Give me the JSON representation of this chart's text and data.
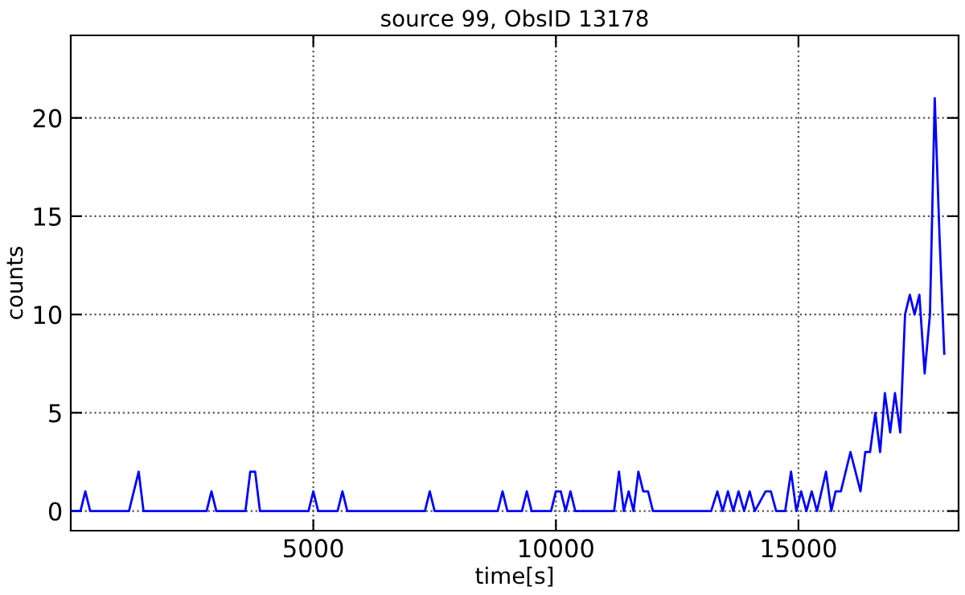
{
  "chart_data": {
    "type": "line",
    "title": "source 99, ObsID 13178",
    "xlabel": "time[s]",
    "ylabel": "counts",
    "x": [
      0,
      200,
      300,
      400,
      1200,
      1400,
      1500,
      2800,
      2900,
      3000,
      3600,
      3700,
      3800,
      3900,
      4900,
      5000,
      5100,
      5500,
      5600,
      5700,
      7300,
      7400,
      7500,
      8800,
      8900,
      9000,
      9300,
      9400,
      9500,
      9900,
      10000,
      10100,
      10200,
      10300,
      10400,
      11200,
      11300,
      11400,
      11500,
      11600,
      11700,
      11800,
      11900,
      12000,
      13200,
      13328,
      13437,
      13546,
      13655,
      13765,
      13880,
      13994,
      14100,
      14322,
      14431,
      14540,
      14726,
      14847,
      14956,
      15055,
      15164,
      15273,
      15382,
      15568,
      15677,
      15765,
      15874,
      16072,
      16279,
      16377,
      16475,
      16584,
      16683,
      16781,
      16890,
      16989,
      17098,
      17197,
      17295,
      17393,
      17492,
      17601,
      17710,
      17809,
      17907,
      18005
    ],
    "series": [
      {
        "color": "#0000ff",
        "values": [
          0,
          0,
          1,
          0,
          0,
          2,
          0,
          0,
          1,
          0,
          0,
          2,
          2,
          0,
          0,
          1,
          0,
          0,
          1,
          0,
          0,
          1,
          0,
          0,
          1,
          0,
          0,
          1,
          0,
          0,
          1,
          1,
          0,
          1,
          0,
          0,
          2,
          0,
          1,
          0,
          2,
          1,
          1,
          0,
          0,
          1,
          0,
          1,
          0,
          1,
          0,
          1,
          0,
          1,
          1,
          0,
          0,
          2,
          0,
          1,
          0,
          1,
          0,
          2,
          0,
          1,
          1,
          3,
          1,
          3,
          3,
          5,
          3,
          6,
          4,
          6,
          4,
          10,
          11,
          10,
          11,
          7,
          10,
          21,
          14,
          8
        ]
      }
    ],
    "xlim": [
      0,
      18300
    ],
    "ylim": [
      -1,
      24.2
    ],
    "xticks": [
      5000,
      10000,
      15000
    ],
    "yticks": [
      0,
      5,
      10,
      15,
      20
    ],
    "grid": true,
    "line_style": "solid",
    "marker": "none"
  }
}
